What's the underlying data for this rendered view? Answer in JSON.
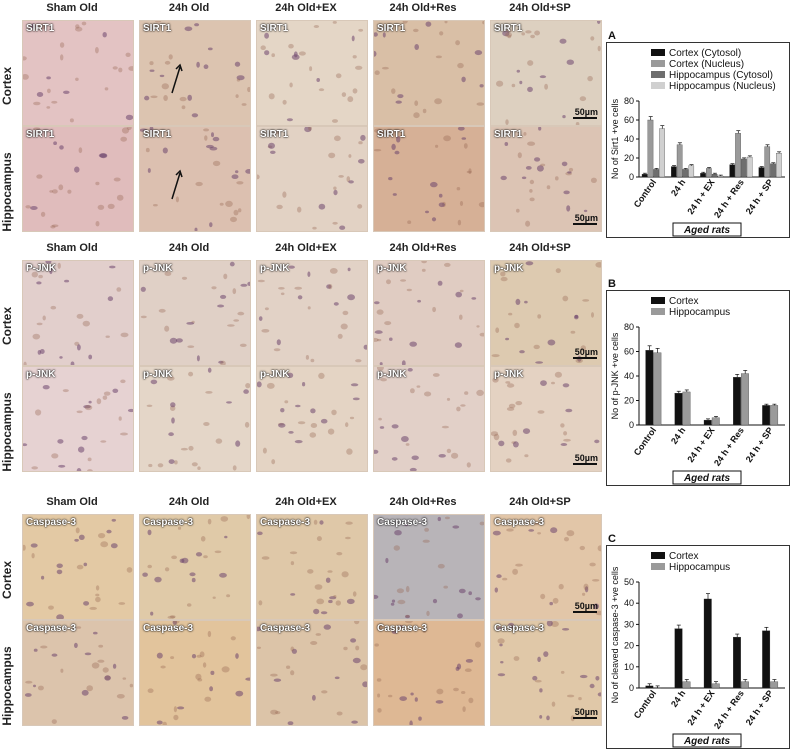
{
  "columns": [
    "Sham Old",
    "24h Old",
    "24h Old+EX",
    "24h Old+Res",
    "24h Old+SP"
  ],
  "rows": [
    "Cortex",
    "Hippocampus"
  ],
  "scale_bar": "50µm",
  "sections": [
    {
      "marker_labels": [
        [
          "SIRT1",
          "SIRT1",
          "SIRT1",
          "SIRT1",
          "SIRT1"
        ],
        [
          "SIRT1",
          "SIRT1",
          "SIRT1",
          "SIRT1",
          "SIRT1"
        ]
      ],
      "tints": [
        [
          "#e3c3c3",
          "#dcc4b0",
          "#e4d6c6",
          "#d9bfa6",
          "#ddd0c0"
        ],
        [
          "#e0bcbc",
          "#dcc0b0",
          "#e2d2c4",
          "#d6b096",
          "#dcc4b4"
        ]
      ],
      "arrows": [
        [
          false,
          true,
          false,
          false,
          false
        ],
        [
          false,
          true,
          false,
          false,
          false
        ]
      ]
    },
    {
      "marker_labels": [
        [
          "P-JNK",
          "p-JNK",
          "p-JNK",
          "p-JNK",
          "p-JNK"
        ],
        [
          "p-JNK",
          "p-JNK",
          "p-JNK",
          "p-JNK",
          "p-JNK"
        ]
      ],
      "tints": [
        [
          "#e2cfcc",
          "#e0d0c6",
          "#e2d2c6",
          "#e0ccc2",
          "#ddcab0"
        ],
        [
          "#e6d2d2",
          "#e4d6c8",
          "#e4d4c4",
          "#e2d0c8",
          "#e4d2c2"
        ]
      ],
      "arrows": [
        [
          false,
          false,
          false,
          false,
          false
        ],
        [
          false,
          false,
          false,
          false,
          false
        ]
      ]
    },
    {
      "marker_labels": [
        [
          "Caspase-3",
          "Caspase-3",
          "Caspase-3",
          "Caspase-3",
          "Caspase-3"
        ],
        [
          "Caspase-3",
          "Caspase-3",
          "Caspase-3",
          "Caspase-3",
          "Caspase-3"
        ]
      ],
      "tints": [
        [
          "#e3c9a4",
          "#e0caa8",
          "#dfc8a8",
          "#b8b4b8",
          "#e2c6a8"
        ],
        [
          "#dcc4ac",
          "#e2c49c",
          "#dcc4a8",
          "#deb894",
          "#e0c8a8"
        ]
      ],
      "arrows": [
        [
          false,
          false,
          false,
          false,
          false
        ],
        [
          false,
          false,
          false,
          false,
          false
        ]
      ]
    }
  ],
  "chart_data": [
    {
      "type": "bar",
      "panel_letter": "A",
      "categories": [
        "Control",
        "24 h",
        "24 h + EX",
        "24 h + Res",
        "24 h + SP"
      ],
      "series": [
        {
          "name": "Cortex (Cytosol)",
          "color": "#111111",
          "values": [
            3,
            11,
            4,
            13,
            10
          ]
        },
        {
          "name": "Cortex (Nucleus)",
          "color": "#9a9a9a",
          "values": [
            60,
            34,
            9,
            46,
            32
          ]
        },
        {
          "name": "Hippocampus (Cytosol)",
          "color": "#6e6e6e",
          "values": [
            8,
            8,
            3,
            19,
            14
          ]
        },
        {
          "name": "Hippocampus (Nucleus)",
          "color": "#d0d0d0",
          "values": [
            51,
            12,
            1,
            21,
            25
          ]
        }
      ],
      "ylabel": "No of Sirt1 +ve cells",
      "xlabel": "Aged rats",
      "ylim": [
        0,
        80
      ],
      "yticks": [
        0,
        20,
        40,
        60,
        80
      ],
      "legend": "top-right"
    },
    {
      "type": "bar",
      "panel_letter": "B",
      "categories": [
        "Control",
        "24 h",
        "24 h + EX",
        "24 h + Res",
        "24 h + SP"
      ],
      "series": [
        {
          "name": "Cortex",
          "color": "#111111",
          "values": [
            61,
            26,
            4,
            39,
            16
          ]
        },
        {
          "name": "Hippocampus",
          "color": "#9a9a9a",
          "values": [
            59,
            27,
            6,
            42,
            16
          ]
        }
      ],
      "ylabel": "No of p-JNK +ve cells",
      "xlabel": "Aged rats",
      "ylim": [
        0,
        80
      ],
      "yticks": [
        0,
        20,
        40,
        60,
        80
      ],
      "legend": "top-right"
    },
    {
      "type": "bar",
      "panel_letter": "C",
      "categories": [
        "Control",
        "24 h",
        "24 h + EX",
        "24 h + Res",
        "24 h + SP"
      ],
      "series": [
        {
          "name": "Cortex",
          "color": "#111111",
          "values": [
            1,
            28,
            42,
            24,
            27
          ]
        },
        {
          "name": "Hippocampus",
          "color": "#9a9a9a",
          "values": [
            0,
            3,
            2,
            3,
            3
          ]
        }
      ],
      "ylabel": "No of cleaved caspase-3 +ve cells",
      "xlabel": "Aged rats",
      "ylim": [
        0,
        50
      ],
      "yticks": [
        0,
        10,
        20,
        30,
        40,
        50
      ],
      "legend": "top-right"
    }
  ]
}
